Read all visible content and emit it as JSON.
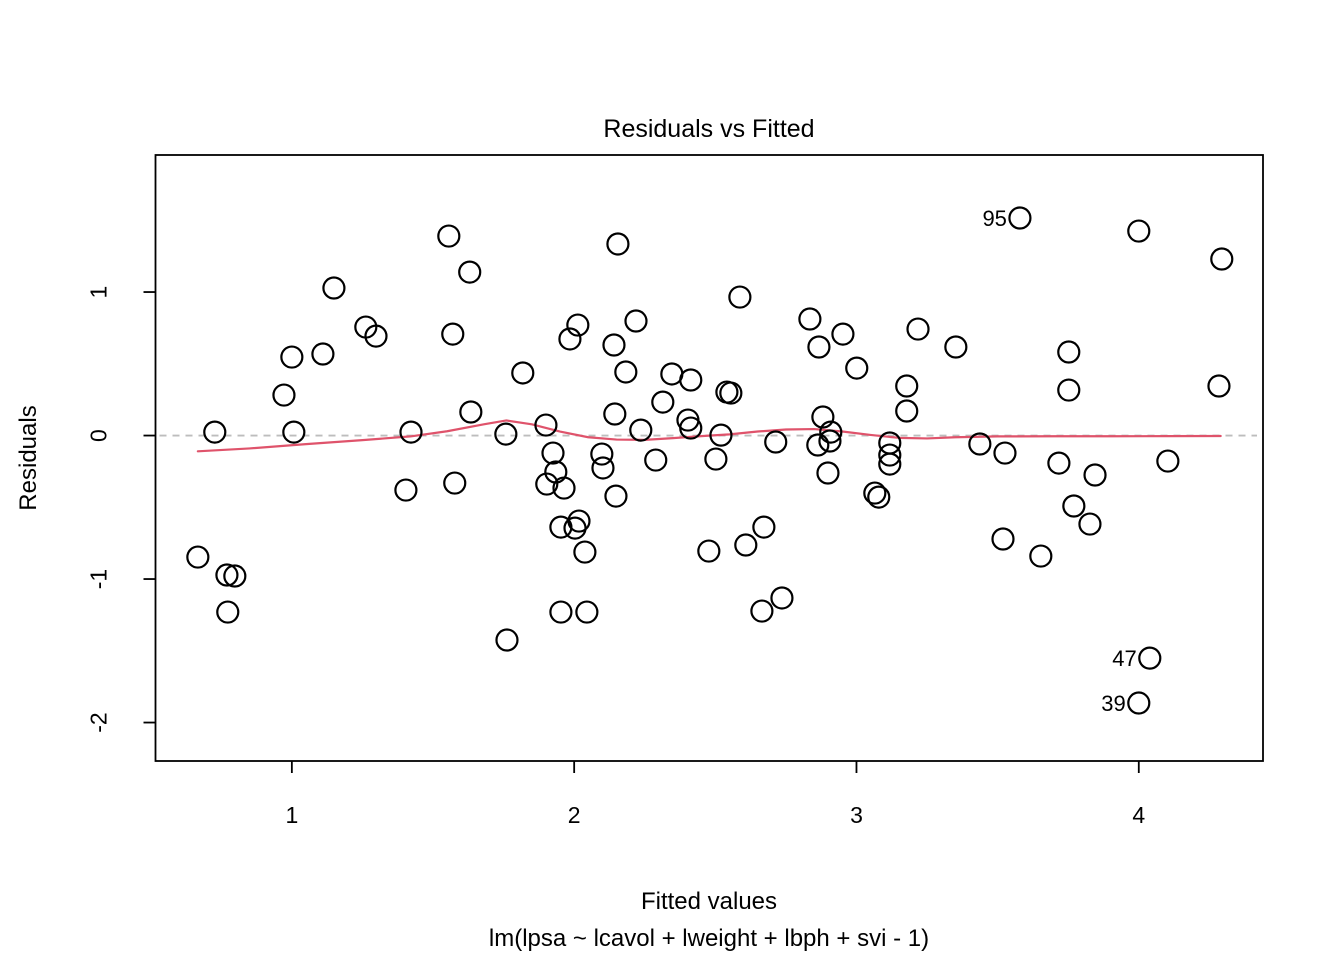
{
  "chart_data": {
    "type": "scatter",
    "title": "Residuals vs Fitted",
    "xlabel": "Fitted values",
    "sub_caption": "lm(lpsa ~ lcavol + lweight + lbph + svi - 1)",
    "ylabel": "Residuals",
    "xlim": [
      0.517,
      4.44
    ],
    "ylim": [
      -2.268,
      1.955
    ],
    "x_ticks": [
      "1",
      "2",
      "3",
      "4"
    ],
    "x_tick_values": [
      1,
      2,
      3,
      4
    ],
    "y_ticks": [
      "-2",
      "-1",
      "0",
      "1"
    ],
    "y_tick_values": [
      -2,
      -1,
      0,
      1
    ],
    "grid": false,
    "legend": "none",
    "marker": "open-circle",
    "colors": {
      "points": "#000000",
      "smoother": "#DF536B",
      "zero_line": "#BDBDBD",
      "axis": "#000000"
    },
    "zero_line": {
      "y": 0,
      "style": "dashed"
    },
    "points": [
      [
        1.556,
        1.39
      ],
      [
        1.63,
        1.139
      ],
      [
        1.149,
        1.028
      ],
      [
        1.262,
        0.756
      ],
      [
        1.298,
        0.693
      ],
      [
        1.57,
        0.707
      ],
      [
        1.0,
        0.547
      ],
      [
        1.11,
        0.568
      ],
      [
        1.818,
        0.436
      ],
      [
        0.972,
        0.282
      ],
      [
        1.634,
        0.164
      ],
      [
        0.727,
        0.024
      ],
      [
        1.007,
        0.024
      ],
      [
        1.422,
        0.024
      ],
      [
        1.758,
        0.01
      ],
      [
        1.9,
        0.073
      ],
      [
        2.155,
        1.335
      ],
      [
        2.587,
        0.965
      ],
      [
        2.013,
        0.77
      ],
      [
        1.985,
        0.673
      ],
      [
        2.219,
        0.798
      ],
      [
        2.141,
        0.631
      ],
      [
        2.835,
        0.812
      ],
      [
        2.952,
        0.707
      ],
      [
        2.867,
        0.617
      ],
      [
        3.218,
        0.742
      ],
      [
        3.352,
        0.617
      ],
      [
        2.183,
        0.443
      ],
      [
        2.346,
        0.429
      ],
      [
        2.413,
        0.387
      ],
      [
        2.541,
        0.303
      ],
      [
        2.555,
        0.296
      ],
      [
        2.314,
        0.233
      ],
      [
        3.001,
        0.47
      ],
      [
        3.178,
        0.345
      ],
      [
        3.178,
        0.171
      ],
      [
        2.144,
        0.15
      ],
      [
        2.403,
        0.108
      ],
      [
        2.413,
        0.052
      ],
      [
        2.236,
        0.038
      ],
      [
        2.52,
        0.003
      ],
      [
        2.881,
        0.129
      ],
      [
        2.714,
        -0.045
      ],
      [
        2.909,
        0.024
      ],
      [
        2.906,
        -0.038
      ],
      [
        2.863,
        -0.066
      ],
      [
        2.899,
        -0.261
      ],
      [
        3.579,
        1.516
      ],
      [
        4.0,
        1.425
      ],
      [
        4.294,
        1.23
      ],
      [
        3.752,
        0.582
      ],
      [
        3.752,
        0.317
      ],
      [
        4.284,
        0.345
      ],
      [
        3.437,
        -0.059
      ],
      [
        3.526,
        -0.122
      ],
      [
        3.717,
        -0.192
      ],
      [
        4.103,
        -0.178
      ],
      [
        0.667,
        -0.847
      ],
      [
        0.77,
        -0.972
      ],
      [
        0.798,
        -0.979
      ],
      [
        0.773,
        -1.23
      ],
      [
        1.404,
        -0.38
      ],
      [
        1.577,
        -0.331
      ],
      [
        1.903,
        -0.338
      ],
      [
        1.762,
        -1.425
      ],
      [
        1.925,
        -0.122
      ],
      [
        1.935,
        -0.254
      ],
      [
        1.964,
        -0.366
      ],
      [
        2.098,
        -0.129
      ],
      [
        2.102,
        -0.226
      ],
      [
        2.289,
        -0.171
      ],
      [
        2.502,
        -0.164
      ],
      [
        3.118,
        -0.052
      ],
      [
        3.118,
        -0.136
      ],
      [
        3.118,
        -0.199
      ],
      [
        2.148,
        -0.422
      ],
      [
        3.065,
        -0.401
      ],
      [
        3.079,
        -0.429
      ],
      [
        1.953,
        -0.638
      ],
      [
        2.003,
        -0.645
      ],
      [
        2.017,
        -0.596
      ],
      [
        2.038,
        -0.812
      ],
      [
        2.477,
        -0.805
      ],
      [
        2.608,
        -0.763
      ],
      [
        2.672,
        -0.638
      ],
      [
        1.953,
        -1.23
      ],
      [
        2.045,
        -1.23
      ],
      [
        2.665,
        -1.223
      ],
      [
        2.736,
        -1.132
      ],
      [
        3.845,
        -0.275
      ],
      [
        3.77,
        -0.491
      ],
      [
        3.827,
        -0.617
      ],
      [
        3.519,
        -0.721
      ],
      [
        3.653,
        -0.84
      ],
      [
        4.039,
        -1.551
      ],
      [
        4.0,
        -1.864
      ]
    ],
    "labeled_points": [
      {
        "label": "95",
        "x": 3.579,
        "y": 1.516
      },
      {
        "label": "47",
        "x": 4.039,
        "y": -1.551
      },
      {
        "label": "39",
        "x": 4.0,
        "y": -1.864
      }
    ],
    "smoother": [
      [
        0.667,
        -0.11
      ],
      [
        0.85,
        -0.09
      ],
      [
        1.05,
        -0.06
      ],
      [
        1.25,
        -0.032
      ],
      [
        1.42,
        -0.006
      ],
      [
        1.55,
        0.03
      ],
      [
        1.68,
        0.078
      ],
      [
        1.76,
        0.105
      ],
      [
        1.85,
        0.078
      ],
      [
        1.95,
        0.028
      ],
      [
        2.05,
        -0.012
      ],
      [
        2.15,
        -0.028
      ],
      [
        2.25,
        -0.03
      ],
      [
        2.35,
        -0.018
      ],
      [
        2.45,
        -0.004
      ],
      [
        2.55,
        0.008
      ],
      [
        2.65,
        0.028
      ],
      [
        2.75,
        0.042
      ],
      [
        2.85,
        0.045
      ],
      [
        2.95,
        0.028
      ],
      [
        3.05,
        0.004
      ],
      [
        3.15,
        -0.016
      ],
      [
        3.25,
        -0.02
      ],
      [
        3.35,
        -0.012
      ],
      [
        3.5,
        -0.006
      ],
      [
        3.7,
        -0.005
      ],
      [
        3.9,
        -0.005
      ],
      [
        4.1,
        -0.004
      ],
      [
        4.29,
        -0.003
      ]
    ]
  }
}
